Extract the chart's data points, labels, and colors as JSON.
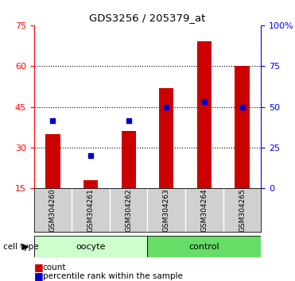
{
  "title": "GDS3256 / 205379_at",
  "samples": [
    "GSM304260",
    "GSM304261",
    "GSM304262",
    "GSM304263",
    "GSM304264",
    "GSM304265"
  ],
  "count_values": [
    35,
    18,
    36,
    52,
    69,
    60
  ],
  "percentile_values": [
    40,
    27,
    40,
    45,
    47,
    45
  ],
  "y_min": 15,
  "y_max": 75,
  "y_ticks_left": [
    15,
    30,
    45,
    60,
    75
  ],
  "y_ticks_right_labels": [
    "0",
    "25",
    "50",
    "75",
    "100%"
  ],
  "y_ticks_right_vals": [
    15,
    30,
    45,
    60,
    75
  ],
  "bar_color": "#cc0000",
  "marker_color": "#0000cc",
  "oocyte_color_light": "#ccffcc",
  "oocyte_color_dark": "#66dd66",
  "control_color": "#44dd44",
  "gray_bg": "#d0d0d0",
  "plot_bg": "#ffffff",
  "legend_count": "count",
  "legend_percentile": "percentile rank within the sample",
  "title_fontsize": 9.5,
  "label_fontsize": 6.5,
  "tick_fontsize": 8
}
